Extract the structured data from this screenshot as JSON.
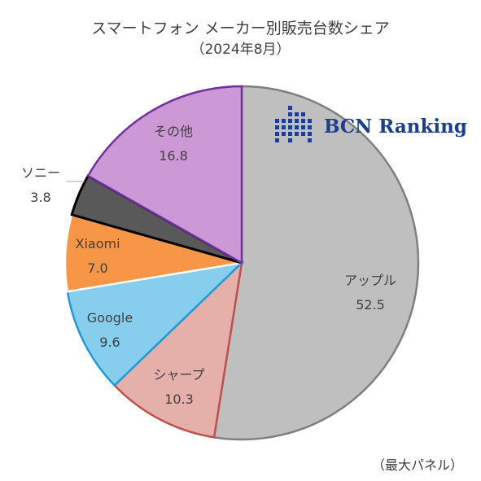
{
  "header": {
    "title": "スマートフォン メーカー別販売台数シェア",
    "subtitle": "（2024年8月）"
  },
  "logo": {
    "text": "BCN Ranking"
  },
  "footnote": "（最大パネル）",
  "chart_data": {
    "type": "pie",
    "title": "スマートフォン メーカー別販売台数シェア",
    "subtitle": "（2024年8月）",
    "unit": "%",
    "slices": [
      {
        "label": "アップル",
        "value": 52.5,
        "value_label": "52.5",
        "color": "#bfbfbf",
        "stroke": "#7f7f7f"
      },
      {
        "label": "シャープ",
        "value": 10.3,
        "value_label": "10.3",
        "color": "#e6b0aa",
        "stroke": "#c0504d"
      },
      {
        "label": "Google",
        "value": 9.6,
        "value_label": "9.6",
        "color": "#87cdee",
        "stroke": "#1f9bd7"
      },
      {
        "label": "Xiaomi",
        "value": 7.0,
        "value_label": "7.0",
        "color": "#f79646",
        "stroke": "#ffffff"
      },
      {
        "label": "ソニー",
        "value": 3.8,
        "value_label": "3.8",
        "color": "#595959",
        "stroke": "#000000"
      },
      {
        "label": "その他",
        "value": 16.8,
        "value_label": "16.8",
        "color": "#cc99d6",
        "stroke": "#7030a0"
      }
    ]
  }
}
